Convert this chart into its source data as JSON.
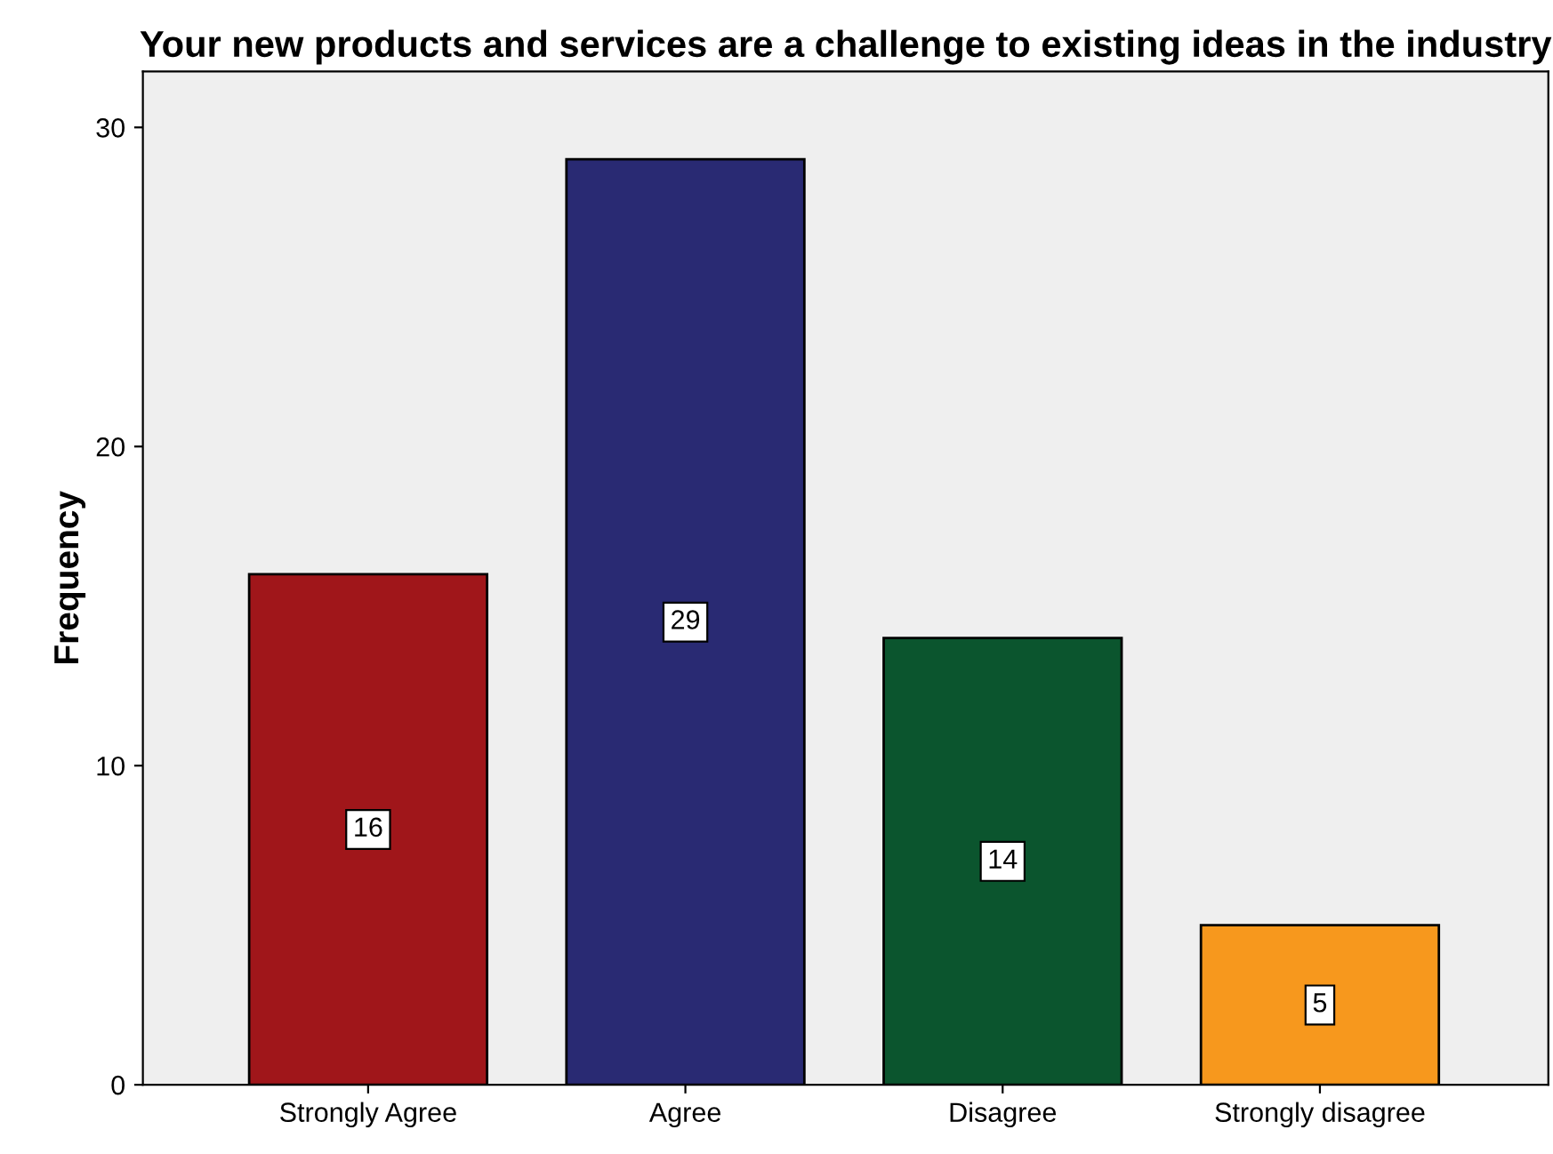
{
  "chart_data": {
    "type": "bar",
    "title": "Your new products and services are a challenge to existing ideas in the industry",
    "ylabel": "Frequency",
    "categories": [
      "Strongly Agree",
      "Agree",
      "Disagree",
      "Strongly disagree"
    ],
    "values": [
      16,
      29,
      14,
      5
    ],
    "colors": [
      "#a0161a",
      "#292a73",
      "#0b552e",
      "#f7981d"
    ],
    "ylim": [
      0,
      31.75
    ],
    "yticks": [
      0,
      10,
      20,
      30
    ],
    "grid": false,
    "data_labels": true
  }
}
